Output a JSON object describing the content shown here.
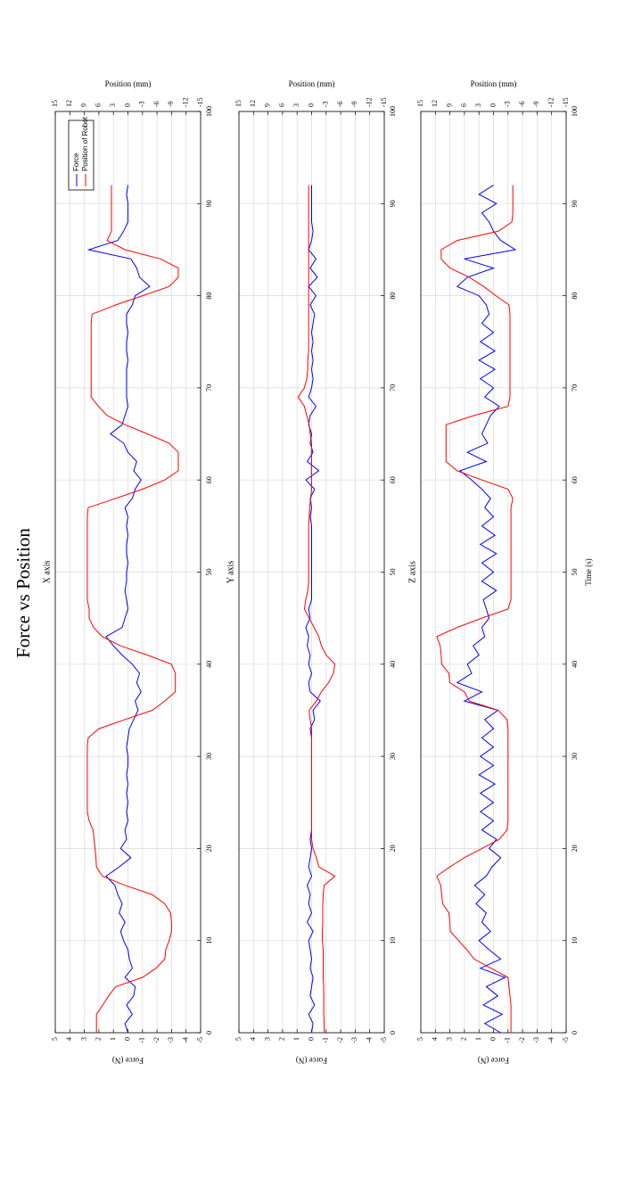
{
  "title": "Force vs Position",
  "chart_data": [
    {
      "type": "line",
      "title": "X axis",
      "ylabel": "Force (N)",
      "y2label": "Position (mm)",
      "x": [
        0,
        1,
        2,
        3,
        4,
        5,
        6,
        7,
        8,
        9,
        10,
        11,
        12,
        13,
        14,
        15,
        16,
        17,
        18,
        19,
        20,
        21,
        22,
        23,
        24,
        25,
        26,
        27,
        28,
        29,
        30,
        31,
        32,
        33,
        34,
        35,
        36,
        37,
        38,
        39,
        40,
        41,
        42,
        43,
        44,
        45,
        46,
        47,
        48,
        49,
        50,
        51,
        52,
        53,
        54,
        55,
        56,
        57,
        58,
        59,
        60,
        61,
        62,
        63,
        64,
        65,
        66,
        67,
        68,
        69,
        70,
        71,
        72,
        73,
        74,
        75,
        76,
        77,
        78,
        79,
        80,
        81,
        82,
        83,
        84,
        85,
        86,
        87,
        88,
        89,
        90,
        91,
        92
      ],
      "xlim": [
        0,
        100
      ],
      "xticks": [
        0,
        10,
        20,
        30,
        40,
        50,
        60,
        70,
        80,
        90,
        100
      ],
      "ylim": [
        -5,
        5
      ],
      "yticks": [
        5,
        4,
        3,
        2,
        1,
        0,
        -1,
        -2,
        -3,
        -4,
        -5
      ],
      "y2lim": [
        -15,
        15
      ],
      "y2ticks": [
        15,
        12,
        9,
        6,
        3,
        0,
        -3,
        -6,
        -9,
        -12,
        -15
      ],
      "grid": true,
      "legend": "upper right",
      "series": [
        {
          "name": "Force",
          "color": "#0000ff",
          "values": [
            0,
            0.2,
            -0.3,
            0.1,
            -0.4,
            -0.5,
            0.2,
            -0.3,
            -0.1,
            0,
            0.3,
            0.5,
            0.2,
            0.6,
            0.4,
            0.7,
            0.9,
            1.5,
            0.6,
            -0.2,
            0.5,
            0.1,
            0.2,
            0,
            0.1,
            0,
            0.1,
            0,
            0.1,
            0,
            0,
            0.1,
            0,
            -0.1,
            -0.4,
            -0.7,
            -0.5,
            -0.9,
            -0.6,
            -0.8,
            -0.3,
            0.4,
            1,
            1.5,
            0.4,
            0.2,
            0,
            0.1,
            0.2,
            0.1,
            0.1,
            0,
            0.1,
            0.1,
            0,
            0.1,
            0,
            0.2,
            -0.3,
            -0.5,
            -0.9,
            -0.4,
            -0.6,
            0,
            0.3,
            1.2,
            0.4,
            0.2,
            0,
            0.1,
            0.1,
            0.1,
            0.1,
            0,
            0.1,
            0.1,
            0,
            0.1,
            0.1,
            -0.3,
            -0.5,
            -1.5,
            -0.8,
            -0.6,
            -0.2,
            2.7,
            0.7,
            0.3,
            0,
            0,
            0,
            0.1,
            0
          ]
        },
        {
          "name": "Position of Robot",
          "color": "#ff0000",
          "axis": "y2",
          "values": [
            6.5,
            6.5,
            6.5,
            5.2,
            4,
            2.5,
            -3,
            -5.8,
            -7.6,
            -7.8,
            -8.5,
            -9,
            -9,
            -8.8,
            -7.6,
            -5,
            0.6,
            5.3,
            6.5,
            6.6,
            6.8,
            7,
            7.2,
            8,
            8.4,
            8.4,
            8.4,
            8.4,
            8.4,
            8.4,
            8.4,
            8.4,
            8.2,
            6,
            0.6,
            -5,
            -7.6,
            -9.8,
            -9.8,
            -9.8,
            -9,
            -4,
            1.6,
            5.3,
            7.1,
            8,
            8,
            8.4,
            8.4,
            8.4,
            8.4,
            8.4,
            8.4,
            8.4,
            8.4,
            8.4,
            8.4,
            8.2,
            2.5,
            -3,
            -7.6,
            -10.4,
            -10.4,
            -10.4,
            -8.5,
            -4,
            0.6,
            4.3,
            6.1,
            7.6,
            7.6,
            7.6,
            7.6,
            7.6,
            7.6,
            7.6,
            7.6,
            7.6,
            7.4,
            2.5,
            -3,
            -8.5,
            -10.4,
            -10.4,
            -6.7,
            0.6,
            4.3,
            3.4,
            3.4,
            3.4,
            3.4,
            3.4,
            3.4
          ]
        }
      ]
    },
    {
      "type": "line",
      "title": "Y axis",
      "ylabel": "Force (N)",
      "y2label": "Position (mm)",
      "x": [
        0,
        1,
        2,
        3,
        4,
        5,
        6,
        7,
        8,
        9,
        10,
        11,
        12,
        13,
        14,
        15,
        16,
        17,
        18,
        19,
        20,
        21,
        22,
        23,
        24,
        25,
        26,
        27,
        28,
        29,
        30,
        31,
        32,
        33,
        34,
        35,
        36,
        37,
        38,
        39,
        40,
        41,
        42,
        43,
        44,
        45,
        46,
        47,
        48,
        49,
        50,
        51,
        52,
        53,
        54,
        55,
        56,
        57,
        58,
        59,
        60,
        61,
        62,
        63,
        64,
        65,
        66,
        67,
        68,
        69,
        70,
        71,
        72,
        73,
        74,
        75,
        76,
        77,
        78,
        79,
        80,
        81,
        82,
        83,
        84,
        85,
        86,
        87,
        88,
        89,
        90,
        91,
        92
      ],
      "xlim": [
        0,
        100
      ],
      "xticks": [
        0,
        10,
        20,
        30,
        40,
        50,
        60,
        70,
        80,
        90,
        100
      ],
      "ylim": [
        -5,
        5
      ],
      "yticks": [
        5,
        4,
        3,
        2,
        1,
        0,
        -1,
        -2,
        -3,
        -4,
        -5
      ],
      "y2lim": [
        -15,
        15
      ],
      "y2ticks": [
        15,
        12,
        9,
        6,
        3,
        0,
        -3,
        -6,
        -9,
        -12,
        -15
      ],
      "grid": true,
      "series": [
        {
          "color": "#0000ff",
          "values": [
            0,
            -0.1,
            0.2,
            -0.2,
            0.1,
            0,
            -0.1,
            0.1,
            0,
            0.1,
            0.2,
            -0.1,
            0.3,
            0,
            0.2,
            0.1,
            0.3,
            0,
            0.2,
            0.1,
            0,
            0.1,
            0,
            0,
            0,
            0,
            0,
            0,
            0,
            0,
            0,
            0,
            0,
            0.1,
            -0.2,
            -0.1,
            -0.6,
            0.1,
            0.2,
            0,
            0.2,
            0.1,
            0.3,
            0.2,
            0.4,
            0.1,
            0.2,
            0,
            0,
            0,
            0,
            0,
            0,
            0,
            0,
            0,
            0.1,
            0,
            0.1,
            -0.2,
            0.4,
            -0.5,
            0.3,
            -0.1,
            0.1,
            0,
            0.2,
            0.1,
            -0.3,
            0.2,
            0,
            -0.1,
            0,
            -0.1,
            0,
            -0.1,
            0,
            -0.1,
            -0.2,
            0.1,
            -0.3,
            0.2,
            -0.4,
            0.1,
            -0.3,
            0.2,
            0,
            -0.1,
            0,
            0,
            0,
            0,
            0
          ]
        },
        {
          "color": "#ff0000",
          "axis": "y2",
          "values": [
            -2.6,
            -2.6,
            -2.5,
            -2.5,
            -2.5,
            -2.5,
            -2.4,
            -2.4,
            -2.4,
            -2.4,
            -2.2,
            -2.2,
            -2.3,
            -2.3,
            -2.3,
            -2.4,
            -2.6,
            -4.8,
            -1.5,
            -1,
            -0.3,
            0,
            0,
            0,
            0,
            0,
            0,
            0,
            0,
            0,
            0,
            0,
            0,
            0,
            0.3,
            0.5,
            -1,
            -2,
            -3.5,
            -4.5,
            -4.8,
            -3,
            -2,
            -1.5,
            -0.5,
            0.5,
            1.5,
            1.2,
            0.8,
            0.6,
            0.6,
            0.6,
            0.6,
            0.6,
            0.6,
            0.6,
            0.5,
            0.4,
            0.2,
            0,
            0,
            0,
            0,
            0,
            0,
            0.3,
            0.5,
            1,
            1.5,
            2.8,
            1.5,
            1,
            0.8,
            0.8,
            0.6,
            0.6,
            0.6,
            0.6,
            0.6,
            0.6,
            0.6,
            0.6,
            0.6,
            0.6,
            0.6,
            0.6,
            0.6,
            0.6,
            0.6,
            0.6,
            0.6,
            0.6,
            0.6
          ]
        }
      ]
    },
    {
      "type": "line",
      "title": "Z axis",
      "ylabel": "Force (N)",
      "y2label": "Position (mm)",
      "xlabel": "Time (s)",
      "x": [
        0,
        1,
        2,
        3,
        4,
        5,
        6,
        7,
        8,
        9,
        10,
        11,
        12,
        13,
        14,
        15,
        16,
        17,
        18,
        19,
        20,
        21,
        22,
        23,
        24,
        25,
        26,
        27,
        28,
        29,
        30,
        31,
        32,
        33,
        34,
        35,
        36,
        37,
        38,
        39,
        40,
        41,
        42,
        43,
        44,
        45,
        46,
        47,
        48,
        49,
        50,
        51,
        52,
        53,
        54,
        55,
        56,
        57,
        58,
        59,
        60,
        61,
        62,
        63,
        64,
        65,
        66,
        67,
        68,
        69,
        70,
        71,
        72,
        73,
        74,
        75,
        76,
        77,
        78,
        79,
        80,
        81,
        82,
        83,
        84,
        85,
        86,
        87,
        88,
        89,
        90,
        91,
        92
      ],
      "xlim": [
        0,
        100
      ],
      "xticks": [
        0,
        10,
        20,
        30,
        40,
        50,
        60,
        70,
        80,
        90,
        100
      ],
      "ylim": [
        -5,
        5
      ],
      "yticks": [
        5,
        4,
        3,
        2,
        1,
        0,
        -1,
        -2,
        -3,
        -4,
        -5
      ],
      "y2lim": [
        -15,
        15
      ],
      "y2ticks": [
        15,
        12,
        9,
        6,
        3,
        0,
        -3,
        -6,
        -9,
        -12,
        -15
      ],
      "grid": true,
      "series": [
        {
          "color": "#0000ff",
          "values": [
            -0.5,
            0.6,
            -0.6,
            0.7,
            -0.3,
            0.5,
            -0.8,
            0.9,
            -0.5,
            0.3,
            1,
            0.2,
            0.8,
            0.5,
            1.2,
            0.6,
            1.3,
            0.5,
            0.1,
            -0.5,
            0.3,
            -0.2,
            0.8,
            0,
            0.9,
            0,
            0.9,
            -0.1,
            1,
            0,
            0.9,
            0,
            0.8,
            0,
            0.6,
            -0.3,
            2,
            0.8,
            2.5,
            1.5,
            1.8,
            1,
            1.4,
            0.6,
            0.8,
            0.3,
            0.5,
            0.7,
            -0.2,
            0.8,
            0,
            0.8,
            -0.2,
            0.9,
            -0.1,
            0.8,
            0,
            0.6,
            0.2,
            0.8,
            1.5,
            2.3,
            0.5,
            1.8,
            0.4,
            0.8,
            0.5,
            0.2,
            -0.4,
            0.6,
            0,
            0.9,
            -0.1,
            1,
            -0.1,
            0.9,
            0,
            0.8,
            0.3,
            0.5,
            1,
            2.5,
            1.8,
            0,
            2,
            -1.5,
            -0.5,
            0,
            0.3,
            0.8,
            -0.2,
            1,
            0
          ]
        },
        {
          "color": "#ff0000",
          "axis": "y2",
          "values": [
            -3.6,
            -3.6,
            -3.6,
            -3.6,
            -3.4,
            -3.2,
            -3,
            0.5,
            4,
            5.5,
            7.2,
            8.9,
            9,
            9.2,
            10.5,
            10.7,
            10.9,
            11.7,
            9,
            6,
            2.4,
            -1.2,
            -2.8,
            -3,
            -3,
            -3,
            -3,
            -3,
            -3,
            -3,
            -3,
            -3,
            -3,
            -3,
            -2.8,
            -1,
            5,
            6,
            9,
            9.2,
            10.7,
            10.8,
            11,
            11.7,
            7.5,
            2.4,
            -3,
            -3.6,
            -3.6,
            -3.6,
            -3.6,
            -3.6,
            -3.6,
            -3.6,
            -3.6,
            -3.6,
            -3.6,
            -3.6,
            -4,
            -3,
            2.4,
            7.5,
            9.8,
            9.8,
            9.8,
            9.8,
            9.8,
            4,
            -3,
            -3.4,
            -3.4,
            -3.4,
            -3.4,
            -3.4,
            -3.4,
            -3.4,
            -3.4,
            -3.4,
            -3.4,
            -3.2,
            -0.5,
            2,
            5,
            9,
            10.8,
            10.8,
            7.5,
            -1,
            -3.8,
            -4,
            -4,
            -4,
            -4
          ]
        }
      ]
    }
  ]
}
